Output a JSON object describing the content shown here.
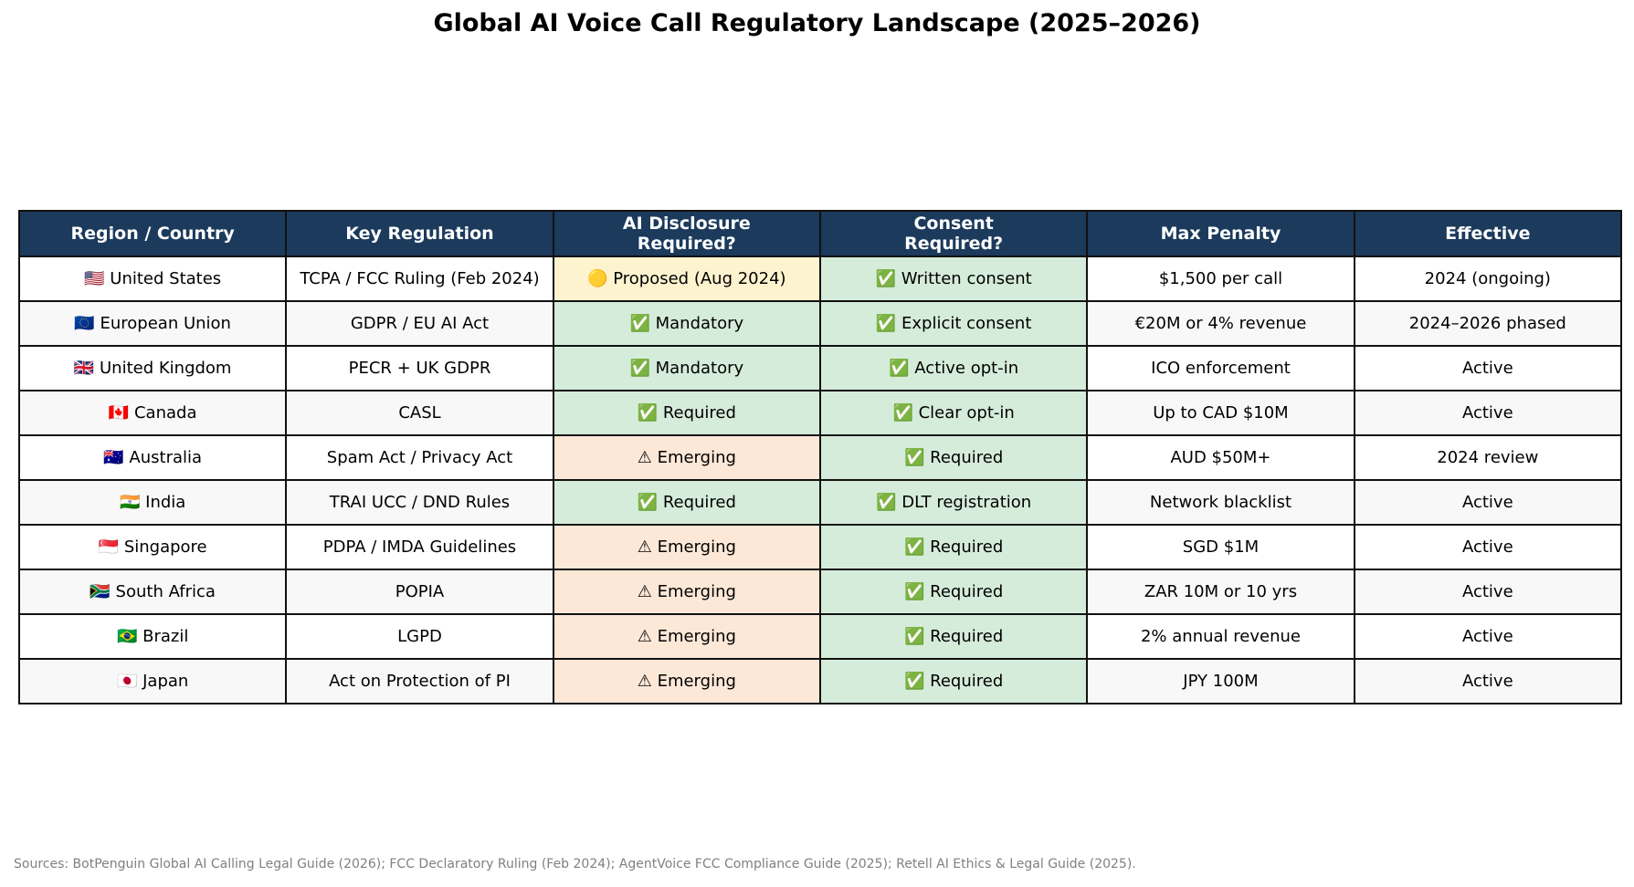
{
  "title": "Global AI Voice Call Regulatory Landscape (2025–2026)",
  "sources": "Sources: BotPenguin Global AI Calling Legal Guide (2026); FCC Declaratory Ruling (Feb 2024); AgentVoice FCC Compliance Guide (2025); Retell AI Ethics & Legal Guide (2025).",
  "colors": {
    "header_bg": "#1b3a5c",
    "header_text": "#ffffff",
    "proposed": "#fef3cf",
    "good": "#d5ecda",
    "emerging": "#fde8d8",
    "row_alt": "#f8f8f8"
  },
  "chart_data": {
    "type": "table",
    "columns": [
      "Region / Country",
      "Key Regulation",
      "AI Disclosure\nRequired?",
      "Consent\nRequired?",
      "Max Penalty",
      "Effective"
    ],
    "rows": [
      {
        "region": "🇺🇸 United States",
        "regulation": "TCPA / FCC Ruling (Feb 2024)",
        "disclosure": "🟡 Proposed (Aug 2024)",
        "disclosure_status": "proposed",
        "consent": "✅ Written consent",
        "consent_status": "good",
        "penalty": "$1,500 per call",
        "effective": "2024 (ongoing)"
      },
      {
        "region": "🇪🇺 European Union",
        "regulation": "GDPR / EU AI Act",
        "disclosure": "✅ Mandatory",
        "disclosure_status": "good",
        "consent": "✅ Explicit consent",
        "consent_status": "good",
        "penalty": "€20M or 4% revenue",
        "effective": "2024–2026 phased"
      },
      {
        "region": "🇬🇧 United Kingdom",
        "regulation": "PECR + UK GDPR",
        "disclosure": "✅ Mandatory",
        "disclosure_status": "good",
        "consent": "✅ Active opt-in",
        "consent_status": "good",
        "penalty": "ICO enforcement",
        "effective": "Active"
      },
      {
        "region": "🇨🇦 Canada",
        "regulation": "CASL",
        "disclosure": "✅ Required",
        "disclosure_status": "good",
        "consent": "✅ Clear opt-in",
        "consent_status": "good",
        "penalty": "Up to CAD $10M",
        "effective": "Active"
      },
      {
        "region": "🇦🇺 Australia",
        "regulation": "Spam Act / Privacy Act",
        "disclosure": "⚠ Emerging",
        "disclosure_status": "emerging",
        "consent": "✅ Required",
        "consent_status": "good",
        "penalty": "AUD $50M+",
        "effective": "2024 review"
      },
      {
        "region": "🇮🇳 India",
        "regulation": "TRAI UCC / DND Rules",
        "disclosure": "✅ Required",
        "disclosure_status": "good",
        "consent": "✅ DLT registration",
        "consent_status": "good",
        "penalty": "Network blacklist",
        "effective": "Active"
      },
      {
        "region": "🇸🇬 Singapore",
        "regulation": "PDPA / IMDA Guidelines",
        "disclosure": "⚠ Emerging",
        "disclosure_status": "emerging",
        "consent": "✅ Required",
        "consent_status": "good",
        "penalty": "SGD $1M",
        "effective": "Active"
      },
      {
        "region": "🇿🇦 South Africa",
        "regulation": "POPIA",
        "disclosure": "⚠ Emerging",
        "disclosure_status": "emerging",
        "consent": "✅ Required",
        "consent_status": "good",
        "penalty": "ZAR 10M or 10 yrs",
        "effective": "Active"
      },
      {
        "region": "🇧🇷 Brazil",
        "regulation": "LGPD",
        "disclosure": "⚠ Emerging",
        "disclosure_status": "emerging",
        "consent": "✅ Required",
        "consent_status": "good",
        "penalty": "2% annual revenue",
        "effective": "Active"
      },
      {
        "region": "🇯🇵 Japan",
        "regulation": "Act on Protection of PI",
        "disclosure": "⚠ Emerging",
        "disclosure_status": "emerging",
        "consent": "✅ Required",
        "consent_status": "good",
        "penalty": "JPY 100M",
        "effective": "Active"
      }
    ]
  }
}
